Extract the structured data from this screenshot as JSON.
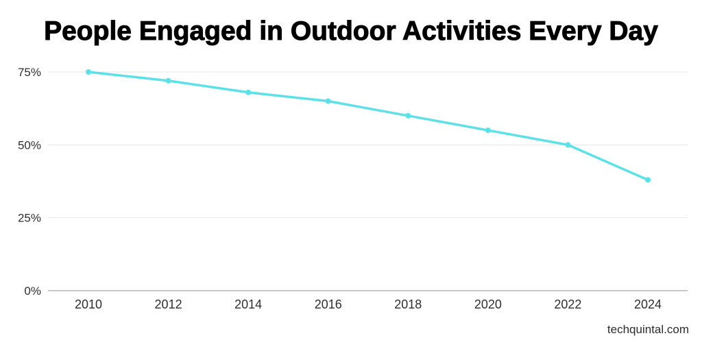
{
  "page": {
    "background": "#ffffff",
    "watermark": "techquintal.com"
  },
  "chart_data": {
    "type": "line",
    "title": "People Engaged in Outdoor Activities Every Day",
    "categories": [
      "2010",
      "2012",
      "2014",
      "2016",
      "2018",
      "2020",
      "2022",
      "2024"
    ],
    "values": [
      75,
      72,
      68,
      65,
      60,
      55,
      50,
      38
    ],
    "unit": "%",
    "xlabel": "",
    "ylabel": "",
    "ylim": [
      0,
      75
    ],
    "yticks": [
      {
        "value": 75,
        "label": "75%"
      },
      {
        "value": 50,
        "label": "50%"
      },
      {
        "value": 25,
        "label": "25%"
      },
      {
        "value": 0,
        "label": "0%"
      }
    ],
    "grid": true,
    "legend_position": "none",
    "line_color": "#5CE1E6",
    "marker": "circle",
    "tick_color": "#2e2e2e",
    "gridline_color": "#e4e4e4",
    "baseline_color": "#c9c9c9"
  }
}
